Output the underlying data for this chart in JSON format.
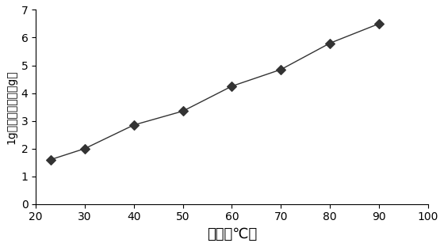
{
  "x": [
    23,
    30,
    40,
    50,
    60,
    70,
    80,
    90
  ],
  "y": [
    1.6,
    2.0,
    2.85,
    3.35,
    4.25,
    4.85,
    5.8,
    6.5
  ],
  "xlabel": "温度（℃）",
  "ylabel": "1g溶硫剂溶硫量（g）",
  "xlim": [
    20,
    100
  ],
  "ylim": [
    0,
    7
  ],
  "xticks": [
    20,
    30,
    40,
    50,
    60,
    70,
    80,
    90,
    100
  ],
  "yticks": [
    0,
    1,
    2,
    3,
    4,
    5,
    6,
    7
  ],
  "line_color": "#333333",
  "marker": "D",
  "marker_size": 6,
  "marker_facecolor": "#333333",
  "linewidth": 1.0,
  "xlabel_fontsize": 13,
  "ylabel_fontsize": 10,
  "tick_fontsize": 10,
  "background_color": "#ffffff"
}
